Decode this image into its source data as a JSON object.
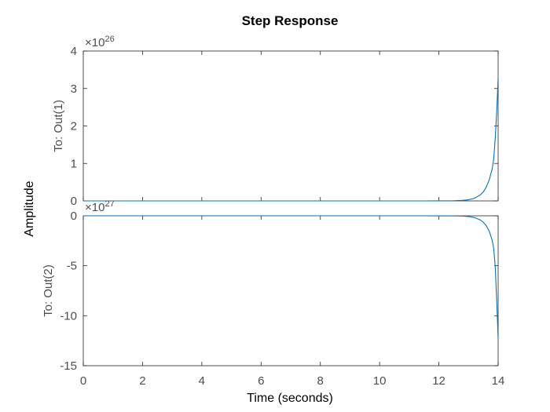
{
  "chart_data": {
    "type": "line",
    "title": "Step Response",
    "xlabel": "Time (seconds)",
    "ylabel": "Amplitude",
    "xlim": [
      0,
      14
    ],
    "x_ticks": [
      "0",
      "2",
      "4",
      "6",
      "8",
      "10",
      "12",
      "14"
    ],
    "grid": false,
    "line_color": "#0072bd",
    "subplots": [
      {
        "name": "To: Out(1)",
        "exponent_base": "×10",
        "exponent_power": "26",
        "ylim": [
          0,
          4
        ],
        "y_ticks": [
          "0",
          "1",
          "2",
          "3",
          "4"
        ],
        "x": [
          0,
          11.5,
          12.0,
          12.5,
          12.8,
          13.0,
          13.2,
          13.4,
          13.5,
          13.6,
          13.7,
          13.8,
          13.85,
          13.9,
          13.95,
          14.0
        ],
        "y": [
          0,
          0,
          0.001,
          0.005,
          0.015,
          0.03,
          0.07,
          0.16,
          0.24,
          0.37,
          0.56,
          0.86,
          1.12,
          1.65,
          2.35,
          3.28
        ]
      },
      {
        "name": "To: Out(2)",
        "exponent_base": "×10",
        "exponent_power": "27",
        "ylim": [
          -15,
          0
        ],
        "y_ticks": [
          "0",
          "-5",
          "-10",
          "-15"
        ],
        "x": [
          0,
          11.5,
          12.0,
          12.5,
          12.8,
          13.0,
          13.2,
          13.4,
          13.5,
          13.6,
          13.7,
          13.8,
          13.85,
          13.9,
          13.95,
          14.0
        ],
        "y": [
          0,
          0,
          -0.002,
          -0.01,
          -0.03,
          -0.07,
          -0.17,
          -0.42,
          -0.64,
          -1.0,
          -1.55,
          -2.45,
          -3.3,
          -5.0,
          -8.3,
          -12.3
        ]
      }
    ]
  }
}
